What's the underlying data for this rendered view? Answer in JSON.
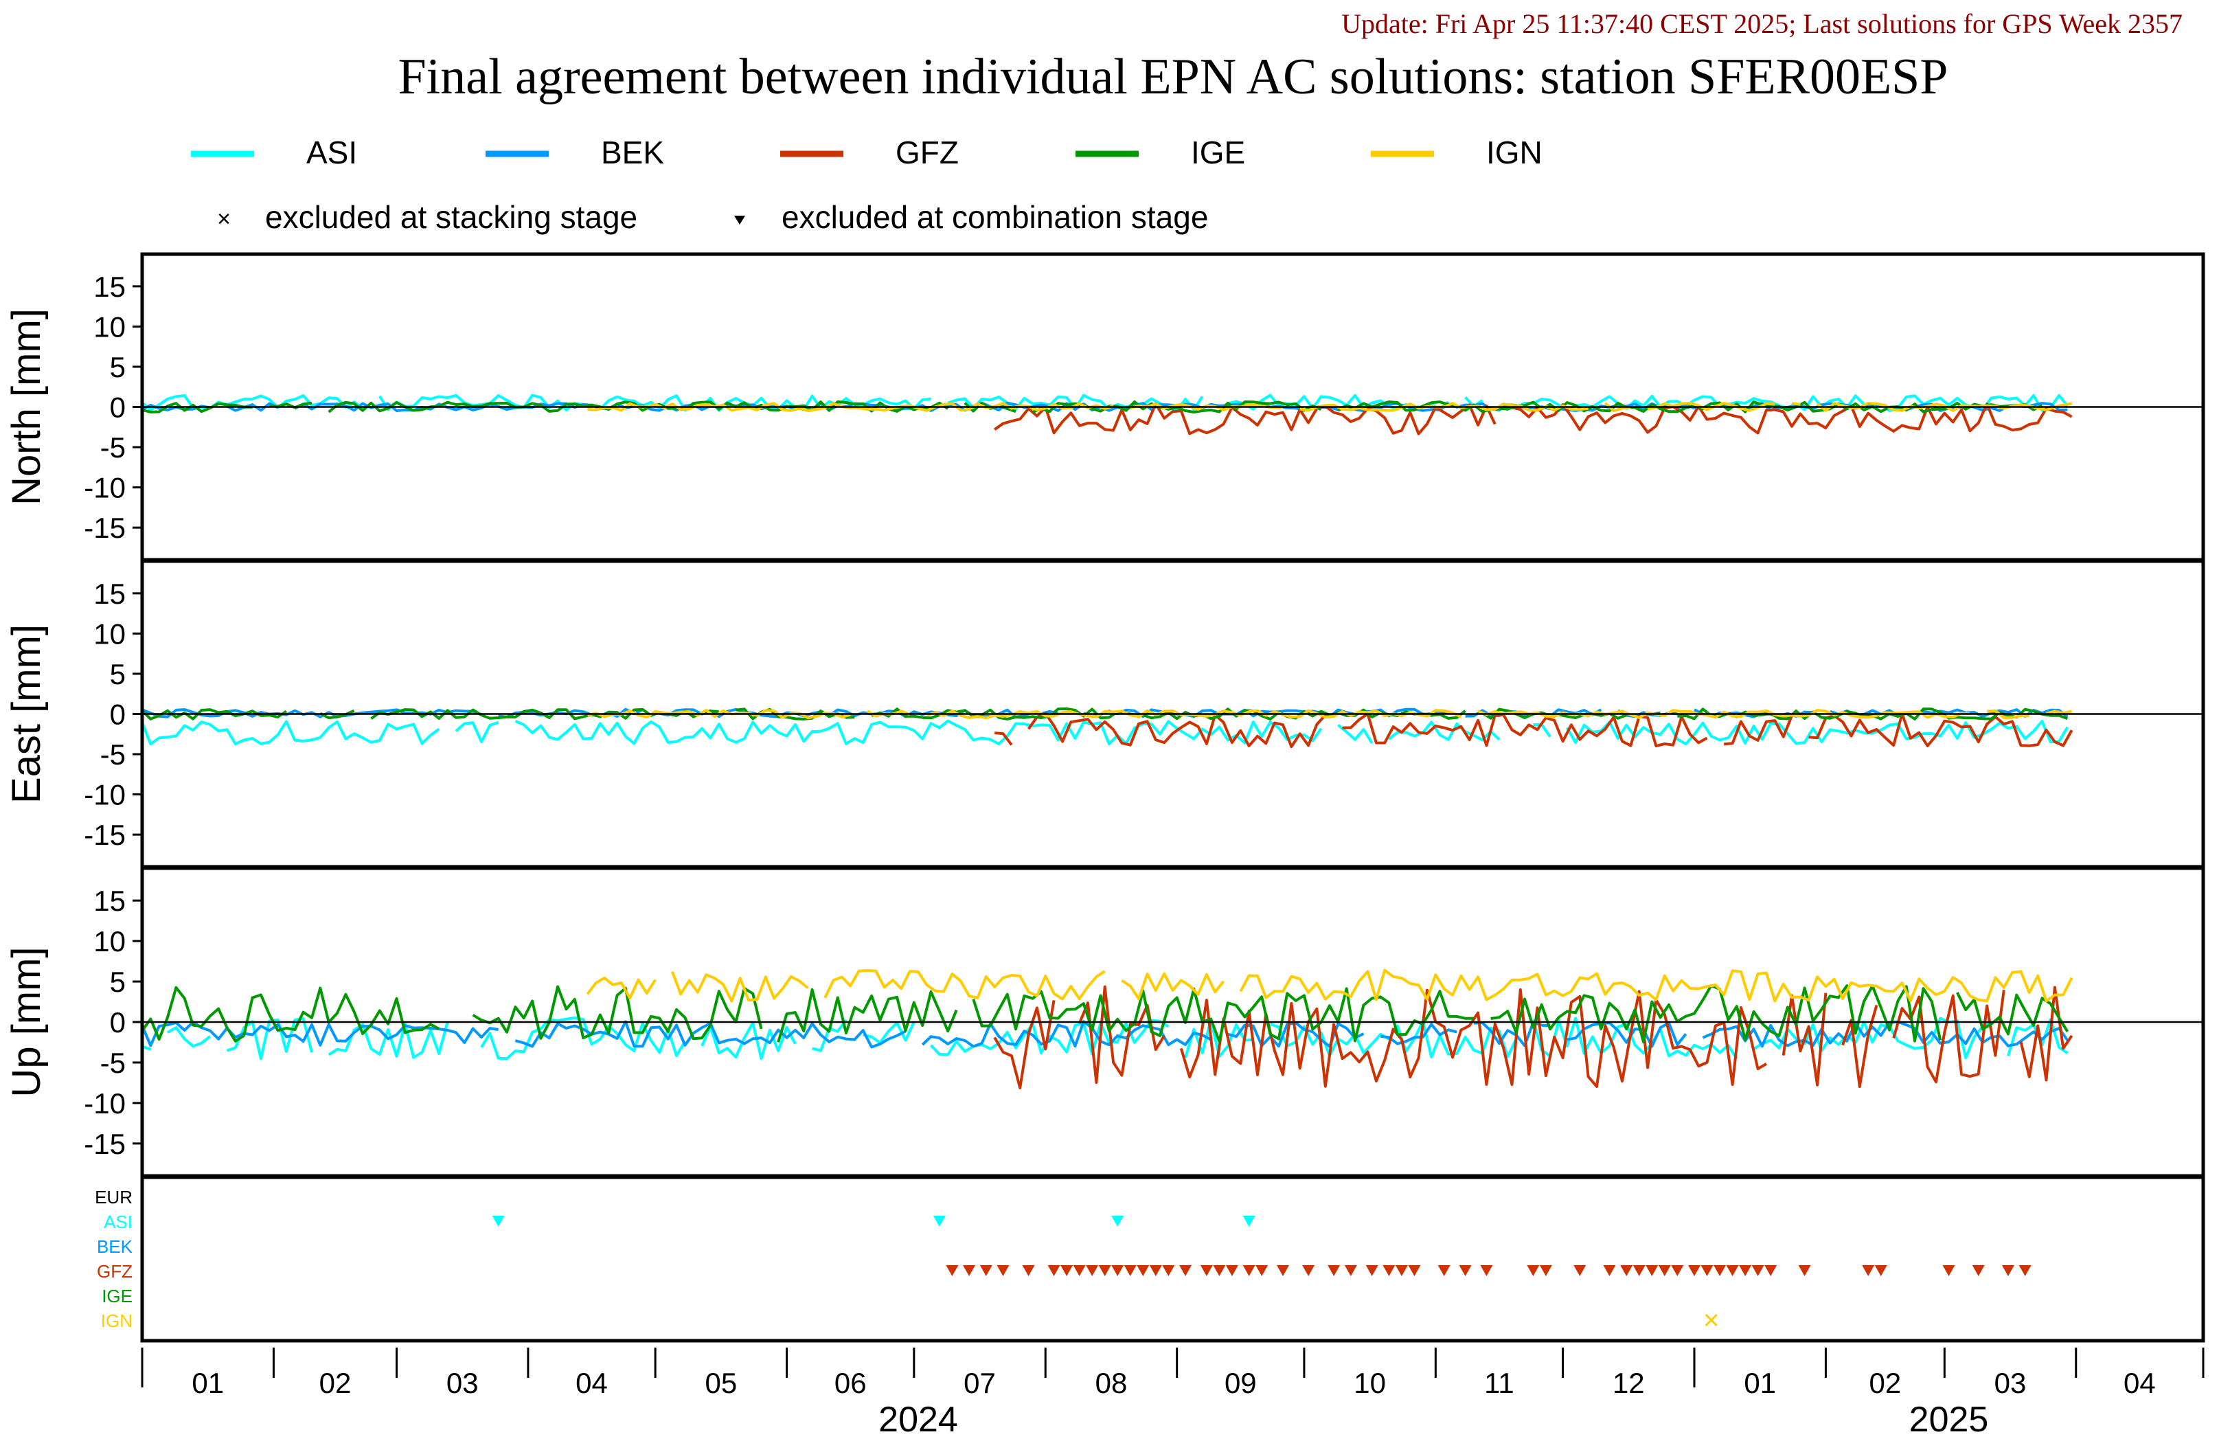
{
  "header": {
    "update": "Update: Fri Apr 25 11:37:40 CEST 2025; Last solutions for GPS Week 2357",
    "title": "Final agreement between individual EPN AC solutions: station SFER00ESP",
    "update_color": "#8b0000"
  },
  "legend": {
    "series": [
      {
        "name": "ASI",
        "color": "#00ffff"
      },
      {
        "name": "BEK",
        "color": "#0099ff"
      },
      {
        "name": "GFZ",
        "color": "#cc3300"
      },
      {
        "name": "IGE",
        "color": "#009900"
      },
      {
        "name": "IGN",
        "color": "#ffcc00"
      }
    ],
    "excluded_stacking": "excluded at stacking stage",
    "excluded_combination": "excluded at combination stage"
  },
  "x_axis": {
    "month_ticks": [
      "01",
      "02",
      "03",
      "04",
      "05",
      "06",
      "07",
      "08",
      "09",
      "10",
      "11",
      "12",
      "01",
      "02",
      "03",
      "04"
    ],
    "years": [
      "2024",
      "2025"
    ],
    "range": [
      "2024-01-01",
      "2025-04-30"
    ]
  },
  "chart_data": [
    {
      "type": "line",
      "ylabel": "North [mm]",
      "ylim": [
        -19,
        19
      ],
      "yticks": [
        -15,
        -10,
        -5,
        0,
        5,
        10,
        15
      ],
      "x_range": [
        "2024-01-01",
        "2025-04-30"
      ],
      "series_levels": [
        {
          "name": "ASI",
          "approx_mean": 0.5,
          "approx_spread": 0.6,
          "first_date": "2024-01-01",
          "last_date": "2025-03-31"
        },
        {
          "name": "BEK",
          "approx_mean": 0.0,
          "approx_spread": 0.3,
          "first_date": "2024-01-01",
          "last_date": "2025-03-31"
        },
        {
          "name": "GFZ",
          "approx_mean": -1.5,
          "approx_spread": 1.2,
          "first_date": "2024-07-20",
          "last_date": "2025-03-31"
        },
        {
          "name": "IGE",
          "approx_mean": 0.0,
          "approx_spread": 0.4,
          "first_date": "2024-01-01",
          "last_date": "2025-03-31"
        },
        {
          "name": "IGN",
          "approx_mean": 0.0,
          "approx_spread": 0.3,
          "first_date": "2024-04-15",
          "last_date": "2025-03-31"
        }
      ]
    },
    {
      "type": "line",
      "ylabel": "East [mm]",
      "ylim": [
        -19,
        19
      ],
      "yticks": [
        -15,
        -10,
        -5,
        0,
        5,
        10,
        15
      ],
      "x_range": [
        "2024-01-01",
        "2025-04-30"
      ],
      "series_levels": [
        {
          "name": "ASI",
          "approx_mean": -2.3,
          "approx_spread": 0.9,
          "first_date": "2024-01-01",
          "last_date": "2025-03-31"
        },
        {
          "name": "BEK",
          "approx_mean": 0.1,
          "approx_spread": 0.3,
          "first_date": "2024-01-01",
          "last_date": "2025-03-31"
        },
        {
          "name": "GFZ",
          "approx_mean": -2.0,
          "approx_spread": 1.3,
          "first_date": "2024-07-20",
          "last_date": "2025-03-31"
        },
        {
          "name": "IGE",
          "approx_mean": 0.0,
          "approx_spread": 0.4,
          "first_date": "2024-01-01",
          "last_date": "2025-03-31"
        },
        {
          "name": "IGN",
          "approx_mean": 0.0,
          "approx_spread": 0.3,
          "first_date": "2024-04-15",
          "last_date": "2025-03-31"
        }
      ]
    },
    {
      "type": "line",
      "ylabel": "Up [mm]",
      "ylim": [
        -19,
        19
      ],
      "yticks": [
        -15,
        -10,
        -5,
        0,
        5,
        10,
        15
      ],
      "x_range": [
        "2024-01-01",
        "2025-04-30"
      ],
      "series_levels": [
        {
          "name": "ASI",
          "approx_mean": -2.0,
          "approx_spread": 1.6,
          "first_date": "2024-01-01",
          "last_date": "2025-03-31"
        },
        {
          "name": "BEK",
          "approx_mean": -1.5,
          "approx_spread": 1.0,
          "first_date": "2024-01-01",
          "last_date": "2025-03-31"
        },
        {
          "name": "GFZ",
          "approx_mean": -2.0,
          "approx_spread": 4.0,
          "first_date": "2024-07-20",
          "last_date": "2025-03-31"
        },
        {
          "name": "IGE",
          "approx_mean": 1.0,
          "approx_spread": 2.2,
          "first_date": "2024-01-01",
          "last_date": "2025-03-31"
        },
        {
          "name": "IGN",
          "approx_mean": 4.5,
          "approx_spread": 1.2,
          "first_date": "2024-04-15",
          "last_date": "2025-03-31"
        }
      ]
    },
    {
      "type": "scatter",
      "panel": "exclusions",
      "rows": [
        {
          "name": "EUR",
          "color": "#000000"
        },
        {
          "name": "ASI",
          "color": "#00ffff"
        },
        {
          "name": "BEK",
          "color": "#0099ff"
        },
        {
          "name": "GFZ",
          "color": "#cc3300"
        },
        {
          "name": "IGE",
          "color": "#009900"
        },
        {
          "name": "IGN",
          "color": "#ffcc00"
        }
      ],
      "combination_excluded": {
        "ASI": [
          "2024-03-25",
          "2024-07-07",
          "2024-08-18",
          "2024-09-18"
        ],
        "GFZ": [
          "2024-07-10",
          "2024-07-14",
          "2024-07-18",
          "2024-07-22",
          "2024-07-28",
          "2024-08-03",
          "2024-08-06",
          "2024-08-09",
          "2024-08-12",
          "2024-08-15",
          "2024-08-18",
          "2024-08-21",
          "2024-08-24",
          "2024-08-27",
          "2024-08-30",
          "2024-09-03",
          "2024-09-08",
          "2024-09-11",
          "2024-09-14",
          "2024-09-18",
          "2024-09-21",
          "2024-09-26",
          "2024-10-02",
          "2024-10-08",
          "2024-10-12",
          "2024-10-17",
          "2024-10-21",
          "2024-10-24",
          "2024-10-27",
          "2024-11-03",
          "2024-11-08",
          "2024-11-13",
          "2024-11-24",
          "2024-11-27",
          "2024-12-05",
          "2024-12-12",
          "2024-12-16",
          "2024-12-19",
          "2024-12-22",
          "2024-12-25",
          "2024-12-28",
          "2025-01-01",
          "2025-01-04",
          "2025-01-07",
          "2025-01-10",
          "2025-01-13",
          "2025-01-16",
          "2025-01-19",
          "2025-01-27",
          "2025-02-11",
          "2025-02-14",
          "2025-03-02",
          "2025-03-09",
          "2025-03-16",
          "2025-03-20"
        ]
      },
      "stacking_excluded": {
        "IGN": [
          "2025-01-05"
        ]
      }
    }
  ]
}
